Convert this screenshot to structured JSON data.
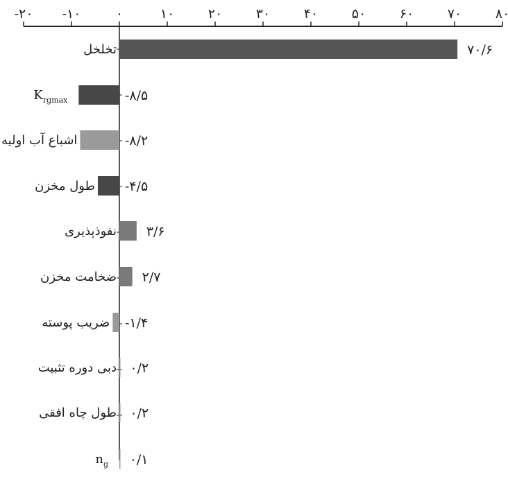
{
  "chart_data": {
    "type": "bar",
    "orientation": "horizontal",
    "title": "",
    "xlabel": "",
    "ylabel": "",
    "xlim": [
      -20,
      80
    ],
    "x_ticks": [
      -20,
      -10,
      0,
      10,
      20,
      30,
      40,
      50,
      60,
      70,
      80
    ],
    "x_tick_labels": [
      "-۲۰",
      "-۱۰",
      "۰",
      "۱۰",
      "۲۰",
      "۳۰",
      "۴۰",
      "۵۰",
      "۶۰",
      "۷۰",
      "۸۰"
    ],
    "grid": false,
    "legend": "none",
    "categories": [
      {
        "label": "تخلخل",
        "sub": ""
      },
      {
        "label": "K",
        "sub": "rgmax"
      },
      {
        "label": "اشباع آب اولیه",
        "sub": ""
      },
      {
        "label": "طول مخزن",
        "sub": ""
      },
      {
        "label": "نفوذپذیری",
        "sub": ""
      },
      {
        "label": "ضخامت مخزن",
        "sub": ""
      },
      {
        "label": "ضریب پوسته",
        "sub": ""
      },
      {
        "label": "دبی دوره تثبیت",
        "sub": ""
      },
      {
        "label": "طول چاه افقی",
        "sub": ""
      },
      {
        "label": "n",
        "sub": "g"
      }
    ],
    "values": [
      70.6,
      -8.5,
      -8.2,
      -4.5,
      3.6,
      2.7,
      -1.4,
      0.2,
      0.2,
      0.1
    ],
    "value_labels": [
      "۷۰/۶",
      "-۸/۵",
      "-۸/۲",
      "-۴/۵",
      "۳/۶",
      "۲/۷",
      "-۱/۴",
      "۰/۲",
      "۰/۲",
      "۰/۱"
    ],
    "colors": [
      "#555555",
      "#474747",
      "#9a9a9a",
      "#474747",
      "#7a7a7a",
      "#7a7a7a",
      "#999999",
      "#999999",
      "#999999",
      "#999999"
    ]
  }
}
